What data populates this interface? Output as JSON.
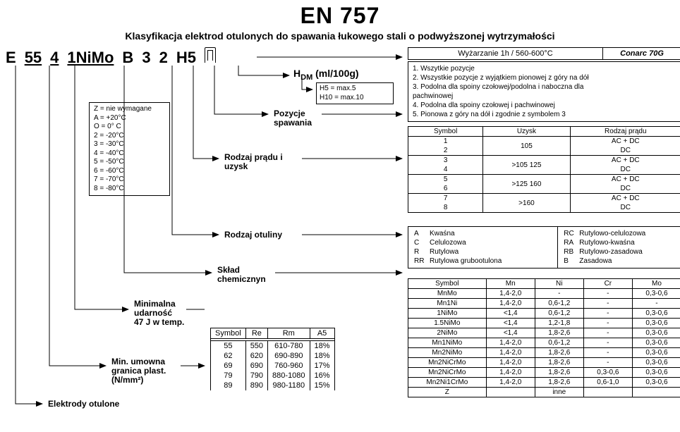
{
  "title": "EN 757",
  "subtitle": "Klasyfikacja elektrod otulonych do spawania łukowego  stali o podwyższonej wytrzymałości",
  "code_tokens": [
    "E",
    "55",
    "4",
    "1NiMo",
    "B",
    "3",
    "2",
    "H5"
  ],
  "code_underlined": [
    false,
    true,
    true,
    true,
    false,
    false,
    false,
    false
  ],
  "hdr_heat": "Wyżarzanie  1h / 560-600°C",
  "hdr_brand": "Conarc 70G",
  "hdm_label": "HDM(ml/100g)",
  "hdm_lines": [
    "H5   =  max.5",
    "H10 =  max.10"
  ],
  "lbl_pozycje": "Pozycje\nspawania",
  "lbl_prad": "Rodzaj prądu i\nuzysk",
  "lbl_otulina": "Rodzaj otuliny",
  "lbl_sklad": "Skład\nchemicznyn",
  "lbl_udarnosc": "Minimalna\nudarność\n47 J w temp.",
  "lbl_granica": "Min. umowna\ngranica plast.\n(N/mm²)",
  "lbl_elektrody": "Elektrody  otulone",
  "temp_box": [
    "Z = nie wymagane",
    "A = +20°C",
    "O =   0° C",
    "2 = -20°C",
    "3 = -30°C",
    "4 = -40°C",
    "5 = -50°C",
    "6 = -60°C",
    "7 = -70°C",
    "8 = -80°C"
  ],
  "positions_box": [
    "1. Wszytkie pozycje",
    "2. Wszystkie pozycje z wyjątkiem pionowej z góry na dół",
    "3. Podolna dla spoiny czołowej/podolna i naboczna dla",
    "pachwinowej",
    "4. Podolna dla spoiny czołowej i pachwinowej",
    "5. Pionowa z góry na dół i zgodnie z symbolem 3"
  ],
  "yield_table": {
    "headers": [
      "Symbol",
      "Uzysk",
      "Rodzaj prądu"
    ],
    "groups": [
      {
        "syms": [
          "1",
          "2"
        ],
        "uzysk": "105",
        "cur": [
          "AC + DC",
          "DC"
        ]
      },
      {
        "syms": [
          "3",
          "4"
        ],
        "uzysk": ">105   125",
        "cur": [
          "AC + DC",
          "DC"
        ]
      },
      {
        "syms": [
          "5",
          "6"
        ],
        "uzysk": ">125   160",
        "cur": [
          "AC + DC",
          "DC"
        ]
      },
      {
        "syms": [
          "7",
          "8"
        ],
        "uzysk": ">160",
        "cur": [
          "AC + DC",
          "DC"
        ]
      }
    ]
  },
  "coating_left": [
    {
      "k": "A",
      "v": "Kwaśna"
    },
    {
      "k": "C",
      "v": "Celulozowa"
    },
    {
      "k": "R",
      "v": "Rutylowa"
    },
    {
      "k": "RR",
      "v": "Rutylowa grubootulona"
    }
  ],
  "coating_right": [
    {
      "k": "RC",
      "v": "Rutylowo-celulozowa"
    },
    {
      "k": "RA",
      "v": "Rutylowo-kwaśna"
    },
    {
      "k": "RB",
      "v": "Rutylowo-zasadowa"
    },
    {
      "k": "B",
      "v": "Zasadowa"
    }
  ],
  "strength_table": {
    "headers": [
      "Symbol",
      "Re",
      "Rm",
      "A5"
    ],
    "rows": [
      [
        "55",
        "550",
        "610-780",
        "18%"
      ],
      [
        "62",
        "620",
        "690-890",
        "18%"
      ],
      [
        "69",
        "690",
        "760-960",
        "17%"
      ],
      [
        "79",
        "790",
        "880-1080",
        "16%"
      ],
      [
        "89",
        "890",
        "980-1180",
        "15%"
      ]
    ]
  },
  "chem_table": {
    "headers": [
      "Symbol",
      "Mn",
      "Ni",
      "Cr",
      "Mo"
    ],
    "rows": [
      [
        "MnMo",
        "1,4-2,0",
        "-",
        "-",
        "0,3-0,6"
      ],
      [
        "Mn1Ni",
        "1,4-2,0",
        "0,6-1,2",
        "-",
        "-"
      ],
      [
        "1NiMo",
        "<1,4",
        "0,6-1,2",
        "-",
        "0,3-0,6"
      ],
      [
        "1.5NiMo",
        "<1,4",
        "1,2-1,8",
        "-",
        "0,3-0,6"
      ],
      [
        "2NiMo",
        "<1,4",
        "1,8-2,6",
        "-",
        "0,3-0,6"
      ],
      [
        "Mn1NiMo",
        "1,4-2,0",
        "0,6-1,2",
        "-",
        "0,3-0,6"
      ],
      [
        "Mn2NiMo",
        "1,4-2,0",
        "1,8-2,6",
        "-",
        "0,3-0,6"
      ],
      [
        "Mn2NiCrMo",
        "1,4-2,0",
        "1,8-2,6",
        "-",
        "0,3-0,6"
      ],
      [
        "Mn2NiCrMo",
        "1,4-2,0",
        "1,8-2,6",
        "0,3-0,6",
        "0,3-0,6"
      ],
      [
        "Mn2Ni1CrMo",
        "1,4-2,0",
        "1,8-2,6",
        "0,6-1,0",
        "0,3-0,6"
      ],
      [
        "Z",
        "",
        "inne",
        "",
        ""
      ]
    ]
  }
}
